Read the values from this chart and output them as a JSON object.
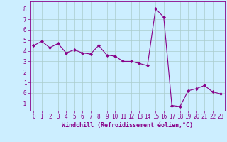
{
  "x": [
    0,
    1,
    2,
    3,
    4,
    5,
    6,
    7,
    8,
    9,
    10,
    11,
    12,
    13,
    14,
    15,
    16,
    17,
    18,
    19,
    20,
    21,
    22,
    23
  ],
  "y": [
    4.5,
    4.9,
    4.3,
    4.7,
    3.8,
    4.1,
    3.8,
    3.7,
    4.5,
    3.6,
    3.5,
    3.0,
    3.0,
    2.8,
    2.6,
    8.0,
    7.2,
    -1.2,
    -1.3,
    0.2,
    0.4,
    0.7,
    0.1,
    -0.1
  ],
  "line_color": "#880088",
  "marker": "D",
  "marker_size": 2.0,
  "linewidth": 0.8,
  "background_color": "#cceeff",
  "grid_color": "#aacccc",
  "xlabel": "Windchill (Refroidissement éolien,°C)",
  "xlabel_fontsize": 6.0,
  "xlim": [
    -0.5,
    23.5
  ],
  "ylim": [
    -1.7,
    8.7
  ],
  "yticks": [
    -1,
    0,
    1,
    2,
    3,
    4,
    5,
    6,
    7,
    8
  ],
  "xtick_labels": [
    "0",
    "1",
    "2",
    "3",
    "4",
    "5",
    "6",
    "7",
    "8",
    "9",
    "10",
    "11",
    "12",
    "13",
    "14",
    "15",
    "16",
    "17",
    "18",
    "19",
    "20",
    "21",
    "22",
    "23"
  ],
  "tick_fontsize": 5.5,
  "tick_color": "#880088",
  "axis_label_color": "#880088",
  "spine_color": "#880088"
}
